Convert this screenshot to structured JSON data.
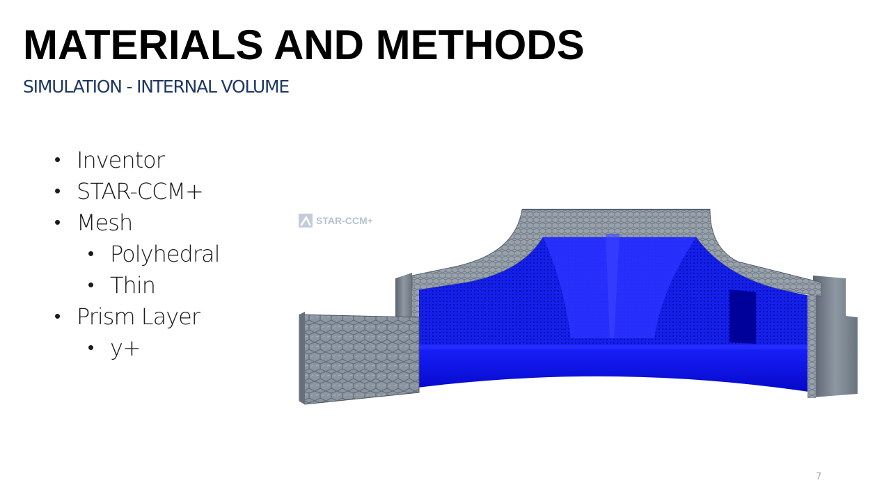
{
  "slide": {
    "title": "MATERIALS AND METHODS",
    "subtitle": "SIMULATION - INTERNAL VOLUME",
    "bullets": [
      {
        "text": "Inventor",
        "level": 1
      },
      {
        "text": "STAR-CCM+",
        "level": 1
      },
      {
        "text": "Mesh",
        "level": 1
      },
      {
        "text": "Polyhedral",
        "level": 2
      },
      {
        "text": "Thin",
        "level": 2
      },
      {
        "text": "Prism Layer",
        "level": 1
      },
      {
        "text": "y+",
        "level": 2
      }
    ],
    "figure": {
      "logo_text": "STAR-CCM+",
      "mesh_color": "#7f8a96",
      "fluid_color": "#0a10f0"
    },
    "page_number": "7"
  },
  "colors": {
    "title": "#000000",
    "subtitle": "#1f3864",
    "body_text": "#1a1a1a",
    "page_number": "#a6a6a6"
  }
}
